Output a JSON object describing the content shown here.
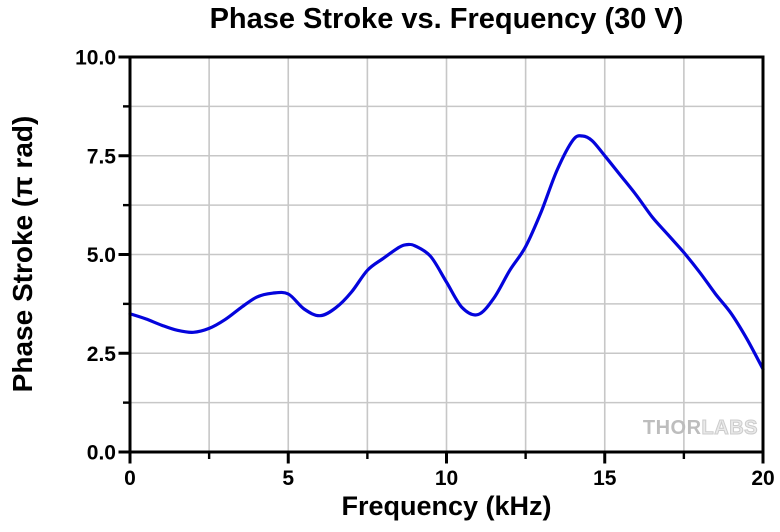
{
  "title": "Phase Stroke vs. Frequency (30 V)",
  "watermark": {
    "part1": "THOR",
    "part2": "LABS"
  },
  "colors": {
    "curve": "#0404DC",
    "grid": "#c7c7c7",
    "frame": "#000000",
    "background": "#ffffff",
    "watermark_solid": "#bdbdbd",
    "watermark_outline": "#cccccc"
  },
  "chart_data": {
    "type": "line",
    "title": "Phase Stroke vs. Frequency (30 V)",
    "xlabel": "Frequency (kHz)",
    "ylabel": "Phase Stroke (π rad)",
    "xlim": [
      0,
      20
    ],
    "ylim": [
      0,
      10
    ],
    "x_major_ticks": [
      0,
      5,
      10,
      15,
      20
    ],
    "x_major_tick_labels": [
      "0",
      "5",
      "10",
      "15",
      "20"
    ],
    "x_minor_ticks": [
      2.5,
      7.5,
      12.5,
      17.5
    ],
    "y_major_ticks": [
      0,
      2.5,
      5,
      7.5,
      10
    ],
    "y_major_tick_labels": [
      "0.0",
      "2.5",
      "5.0",
      "7.5",
      "10.0"
    ],
    "y_minor_ticks": [
      1.25,
      3.75,
      6.25,
      8.75
    ],
    "grid": "major-and-minor",
    "legend": "none",
    "series": [
      {
        "name": "Phase Stroke",
        "color": "#0404DC",
        "points": [
          [
            0,
            3.5
          ],
          [
            0.5,
            3.37
          ],
          [
            1,
            3.21
          ],
          [
            1.5,
            3.08
          ],
          [
            2,
            3.03
          ],
          [
            2.5,
            3.13
          ],
          [
            3,
            3.35
          ],
          [
            3.5,
            3.65
          ],
          [
            4,
            3.92
          ],
          [
            4.5,
            4.02
          ],
          [
            5,
            4.0
          ],
          [
            5.5,
            3.62
          ],
          [
            6,
            3.45
          ],
          [
            6.5,
            3.65
          ],
          [
            7,
            4.05
          ],
          [
            7.5,
            4.6
          ],
          [
            8,
            4.9
          ],
          [
            8.5,
            5.18
          ],
          [
            8.75,
            5.25
          ],
          [
            9,
            5.22
          ],
          [
            9.5,
            4.95
          ],
          [
            10,
            4.3
          ],
          [
            10.5,
            3.65
          ],
          [
            11,
            3.48
          ],
          [
            11.5,
            3.9
          ],
          [
            12,
            4.6
          ],
          [
            12.5,
            5.2
          ],
          [
            13,
            6.1
          ],
          [
            13.5,
            7.15
          ],
          [
            14,
            7.9
          ],
          [
            14.3,
            8.0
          ],
          [
            14.6,
            7.88
          ],
          [
            15,
            7.5
          ],
          [
            15.5,
            7.0
          ],
          [
            16,
            6.5
          ],
          [
            16.5,
            5.95
          ],
          [
            17,
            5.5
          ],
          [
            17.5,
            5.05
          ],
          [
            18,
            4.55
          ],
          [
            18.5,
            4.0
          ],
          [
            19,
            3.5
          ],
          [
            19.5,
            2.85
          ],
          [
            20,
            2.1
          ]
        ]
      }
    ]
  }
}
